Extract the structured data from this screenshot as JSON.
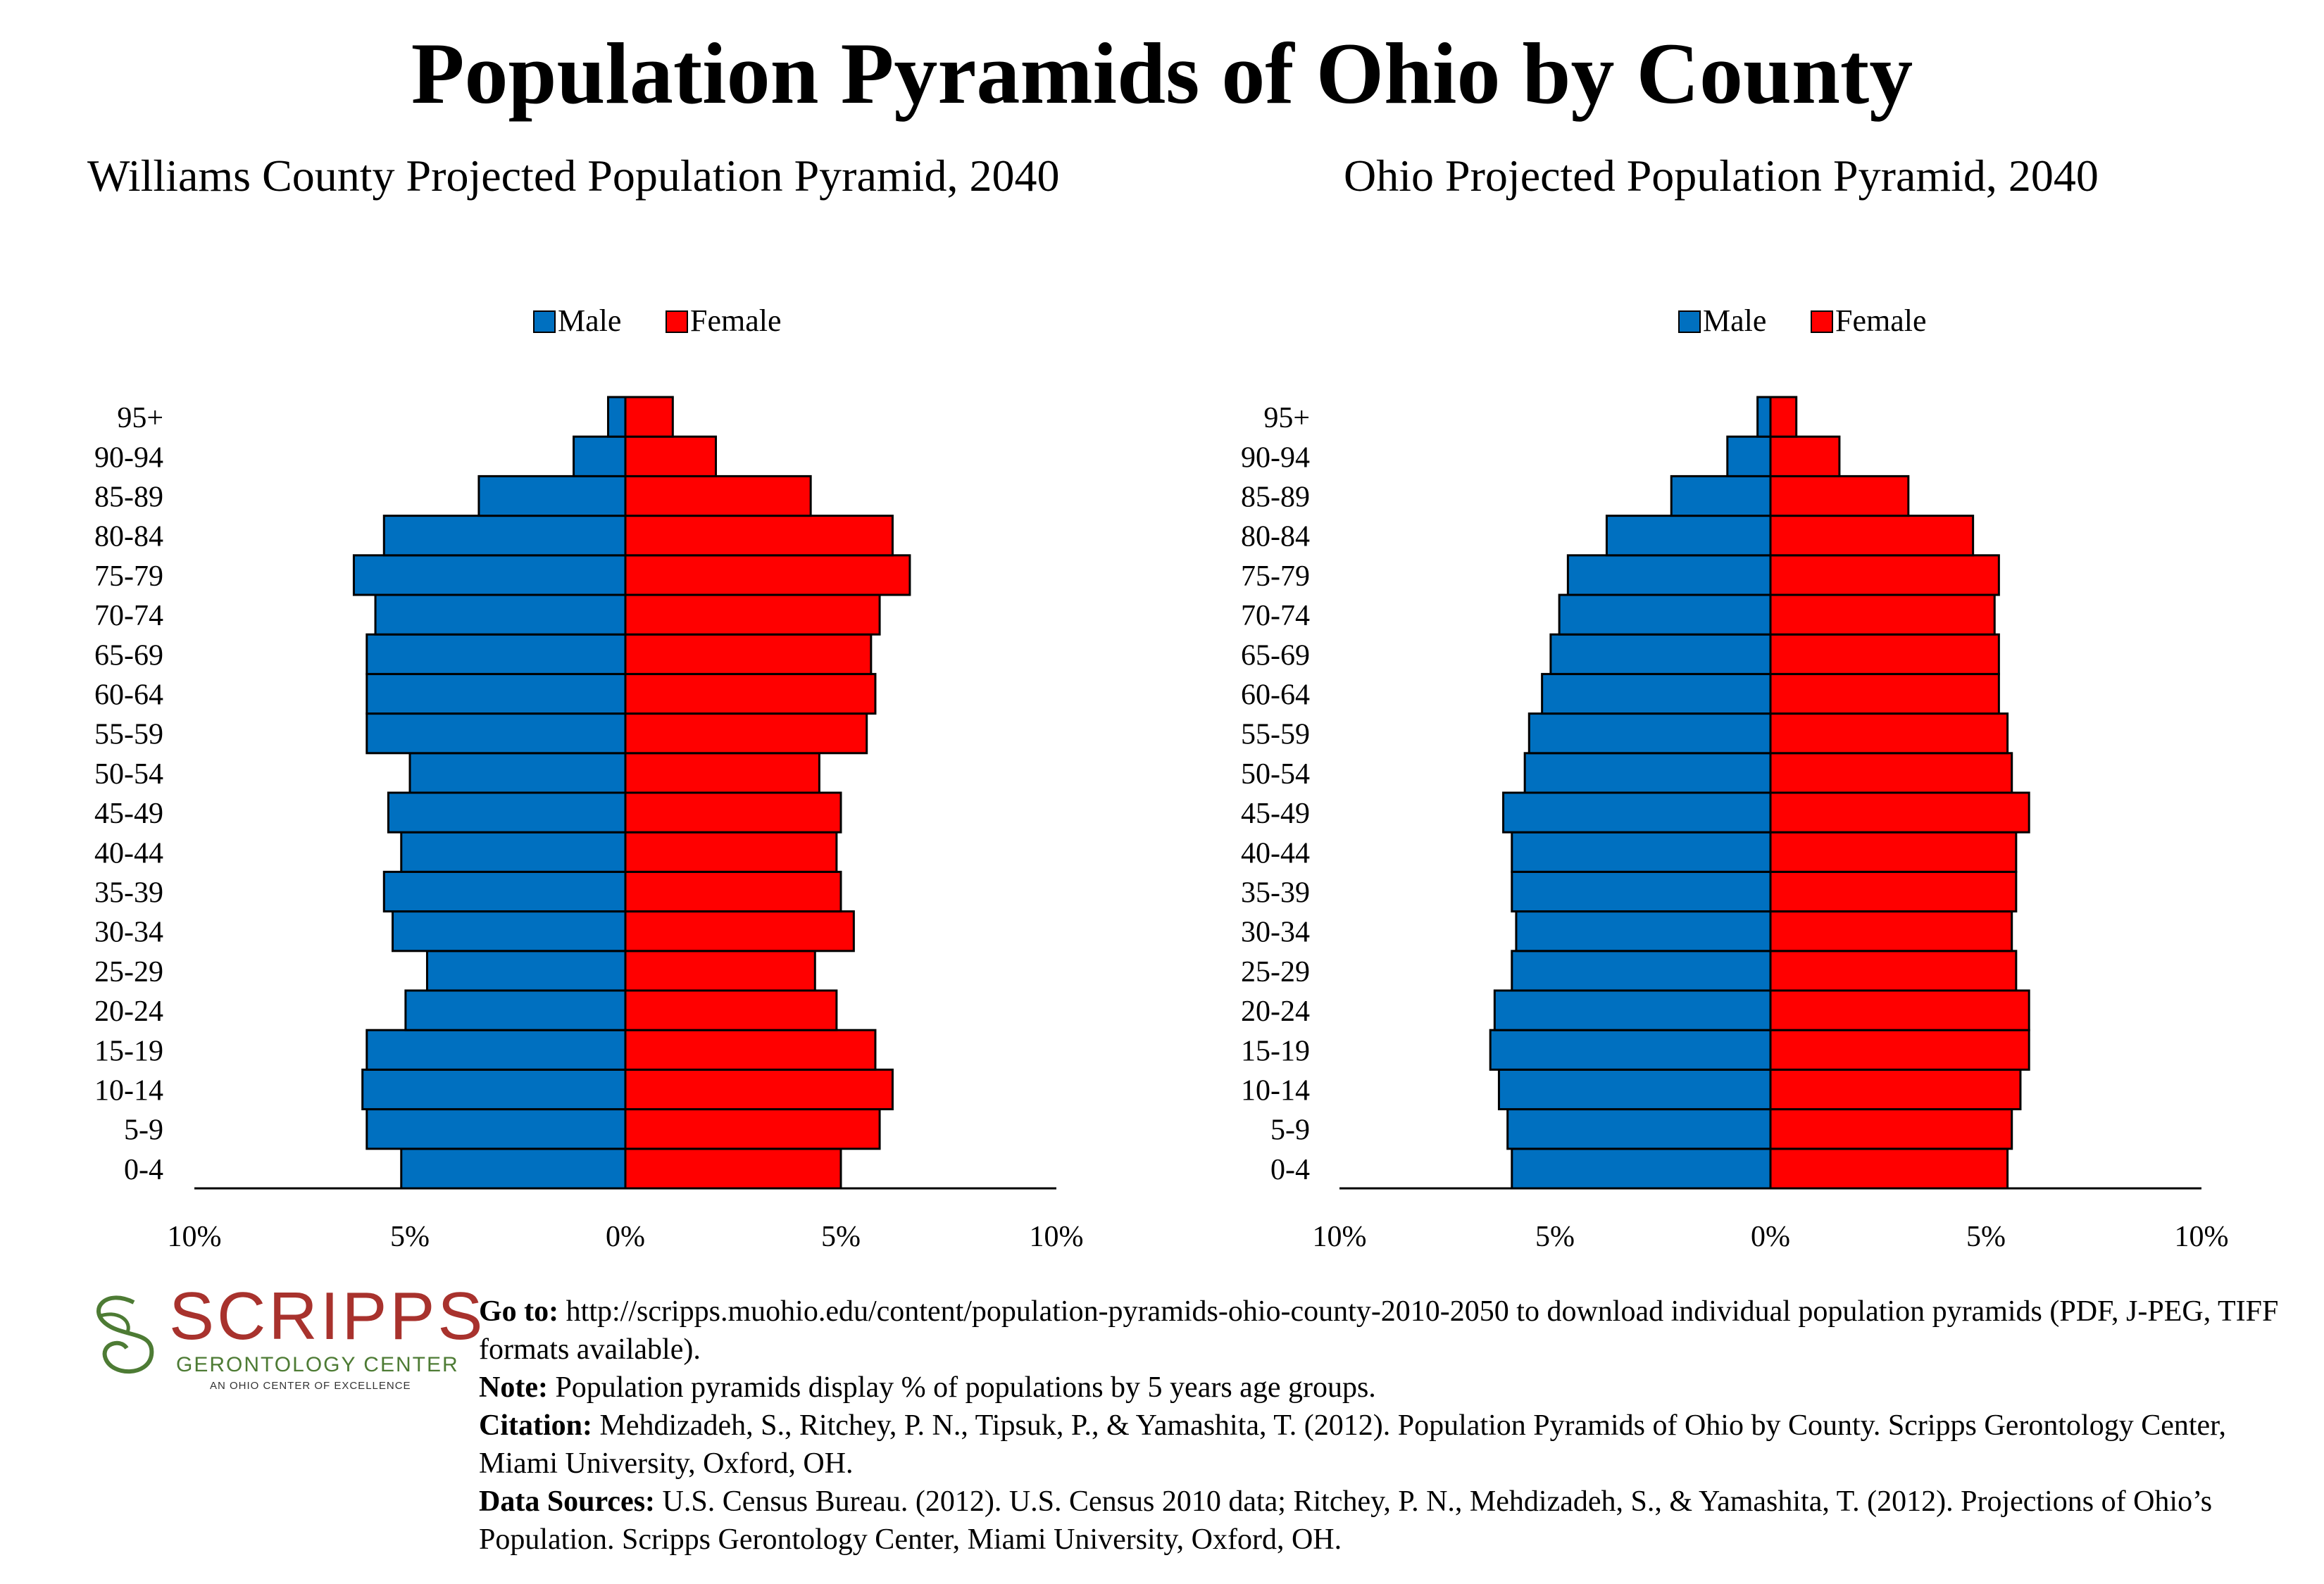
{
  "title": "Population Pyramids of Ohio by County",
  "legend": {
    "male": "Male",
    "female": "Female"
  },
  "colors": {
    "male": "#0070c0",
    "female": "#ff0000",
    "outline": "#000000"
  },
  "chart_data": [
    {
      "type": "bar",
      "orientation": "horizontal-pyramid",
      "title": "Williams County Projected Population Pyramid, 2040",
      "categories": [
        "0-4",
        "5-9",
        "10-14",
        "15-19",
        "20-24",
        "25-29",
        "30-34",
        "35-39",
        "40-44",
        "45-49",
        "50-54",
        "55-59",
        "60-64",
        "65-69",
        "70-74",
        "75-79",
        "80-84",
        "85-89",
        "90-94",
        "95+"
      ],
      "series": [
        {
          "name": "Male",
          "values": [
            5.2,
            6.0,
            6.1,
            6.0,
            5.1,
            4.6,
            5.4,
            5.6,
            5.2,
            5.5,
            5.0,
            6.0,
            6.0,
            6.0,
            5.8,
            6.3,
            5.6,
            3.4,
            1.2,
            0.4
          ]
        },
        {
          "name": "Female",
          "values": [
            5.0,
            5.9,
            6.2,
            5.8,
            4.9,
            4.4,
            5.3,
            5.0,
            4.9,
            5.0,
            4.5,
            5.6,
            5.8,
            5.7,
            5.9,
            6.6,
            6.2,
            4.3,
            2.1,
            1.1
          ]
        }
      ],
      "xlim": [
        -10,
        10
      ],
      "xticks": [
        "10%",
        "5%",
        "0%",
        "5%",
        "10%"
      ],
      "legend_position": "top"
    },
    {
      "type": "bar",
      "orientation": "horizontal-pyramid",
      "title": "Ohio Projected Population Pyramid, 2040",
      "categories": [
        "0-4",
        "5-9",
        "10-14",
        "15-19",
        "20-24",
        "25-29",
        "30-34",
        "35-39",
        "40-44",
        "45-49",
        "50-54",
        "55-59",
        "60-64",
        "65-69",
        "70-74",
        "75-79",
        "80-84",
        "85-89",
        "90-94",
        "95+"
      ],
      "series": [
        {
          "name": "Male",
          "values": [
            6.0,
            6.1,
            6.3,
            6.5,
            6.4,
            6.0,
            5.9,
            6.0,
            6.0,
            6.2,
            5.7,
            5.6,
            5.3,
            5.1,
            4.9,
            4.7,
            3.8,
            2.3,
            1.0,
            0.3
          ]
        },
        {
          "name": "Female",
          "values": [
            5.5,
            5.6,
            5.8,
            6.0,
            6.0,
            5.7,
            5.6,
            5.7,
            5.7,
            6.0,
            5.6,
            5.5,
            5.3,
            5.3,
            5.2,
            5.3,
            4.7,
            3.2,
            1.6,
            0.6
          ]
        }
      ],
      "xlim": [
        -10,
        10
      ],
      "xticks": [
        "10%",
        "5%",
        "0%",
        "5%",
        "10%"
      ],
      "legend_position": "top"
    }
  ],
  "footer": {
    "goto_label": "Go to:",
    "goto_text": "http://scripps.muohio.edu/content/population-pyramids-ohio-county-2010-2050 to download individual population pyramids (PDF, J-PEG, TIFF formats available).",
    "note_label": "Note:",
    "note_text": "Population pyramids display % of populations by 5 years age groups.",
    "citation_label": "Citation:",
    "citation_text": "Mehdizadeh, S., Ritchey, P. N., Tipsuk, P., & Yamashita, T. (2012). Population Pyramids of Ohio by County. Scripps Gerontology Center, Miami University, Oxford, OH.",
    "sources_label": "Data Sources:",
    "sources_text": "U.S. Census Bureau. (2012). U.S. Census 2010 data; Ritchey, P. N., Mehdizadeh, S., & Yamashita, T. (2012). Projections of Ohio’s Population. Scripps Gerontology Center, Miami University, Oxford, OH."
  },
  "logo": {
    "name": "SCRIPPS",
    "subtitle": "GERONTOLOGY CENTER",
    "tagline": "AN OHIO CENTER OF EXCELLENCE",
    "colors": {
      "name": "#a8322d",
      "subtitle": "#4d7b34"
    }
  }
}
